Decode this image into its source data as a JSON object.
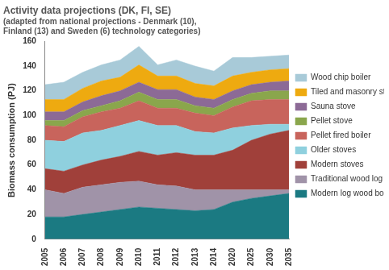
{
  "chart_data": {
    "type": "area",
    "title": "Activity data projections (DK, FI, SE)",
    "subtitle": "(adapted from national projections - Denmark (10), Finland (13) and Sweden (6) technology categories)",
    "y_label": "Biomass consumption (PJ)",
    "categories": [
      "2005",
      "2006",
      "2007",
      "2008",
      "2009",
      "2010",
      "2011",
      "2012",
      "2013",
      "2014",
      "2020",
      "2025",
      "2030",
      "2035"
    ],
    "stacked": true,
    "grid": false,
    "legend": "right",
    "ylim": [
      0,
      160
    ],
    "yticks": [
      0,
      20,
      40,
      60,
      80,
      100,
      120,
      140,
      160
    ],
    "series": [
      {
        "name": "Modern log wood boiler",
        "color": "#1b7a82",
        "values": [
          18,
          18,
          20,
          22,
          24,
          26,
          25,
          24,
          23,
          24,
          30,
          33,
          35,
          37
        ]
      },
      {
        "name": "Traditional wood log boiler",
        "color": "#a093a8",
        "values": [
          22,
          19,
          22,
          22,
          22,
          21,
          19,
          19,
          17,
          16,
          10,
          7,
          5,
          3
        ]
      },
      {
        "name": "Modern stoves",
        "color": "#a0403a",
        "values": [
          17,
          18,
          18,
          20,
          21,
          24,
          24,
          27,
          28,
          28,
          32,
          40,
          45,
          48
        ]
      },
      {
        "name": "Older stoves",
        "color": "#8fd0de",
        "values": [
          23,
          24,
          26,
          24,
          25,
          25,
          24,
          22,
          19,
          18,
          18,
          12,
          8,
          5
        ]
      },
      {
        "name": "Pellet fired boiler",
        "color": "#c8645c",
        "values": [
          12,
          12,
          13,
          15,
          14,
          16,
          14,
          14,
          15,
          14,
          17,
          20,
          20,
          20
        ]
      },
      {
        "name": "Pellet stove",
        "color": "#8aa64c",
        "values": [
          4,
          5,
          5,
          5,
          6,
          7,
          7,
          7,
          6,
          6,
          6,
          6,
          7,
          7
        ]
      },
      {
        "name": "Sauna stove",
        "color": "#8c6a96",
        "values": [
          7,
          7,
          7,
          8,
          8,
          8,
          8,
          8,
          7,
          7,
          7,
          7,
          7,
          8
        ]
      },
      {
        "name": "Tiled and masonry stoves",
        "color": "#eeaa10",
        "values": [
          10,
          10,
          11,
          12,
          11,
          14,
          11,
          11,
          11,
          11,
          12,
          10,
          10,
          10
        ]
      },
      {
        "name": "Wood chip boiler",
        "color": "#a8cad8",
        "values": [
          12,
          14,
          13,
          13,
          14,
          15,
          9,
          13,
          14,
          12,
          15,
          12,
          11,
          11
        ]
      }
    ]
  }
}
